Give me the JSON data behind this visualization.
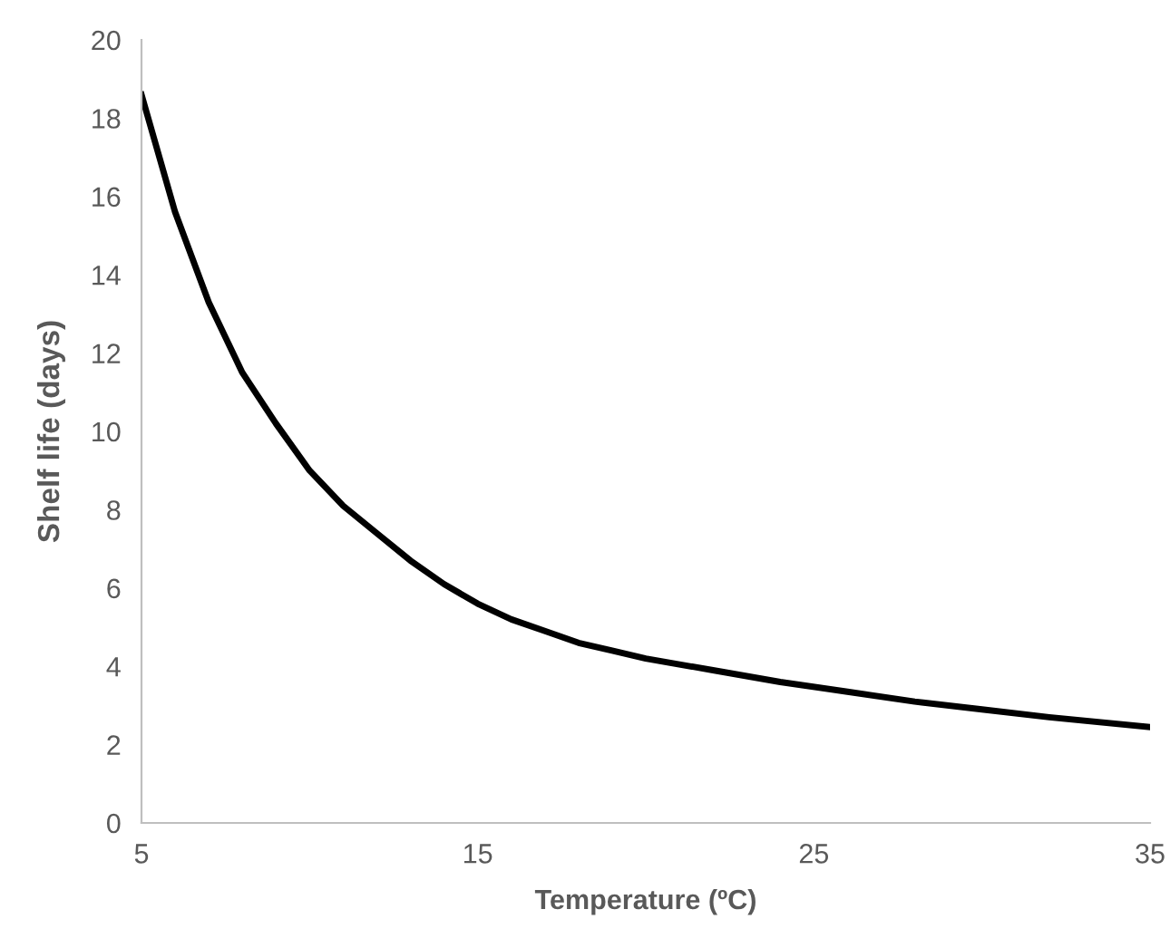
{
  "chart_data": {
    "type": "line",
    "xlabel": "Temperature (ºC)",
    "ylabel": "Shelf life (days)",
    "x": [
      5,
      6,
      7,
      8,
      9,
      10,
      11,
      12,
      13,
      14,
      15,
      16,
      17,
      18,
      19,
      20,
      22,
      24,
      26,
      28,
      30,
      32,
      35
    ],
    "series": [
      {
        "color": "#000000",
        "values": [
          18.6,
          15.6,
          13.3,
          11.5,
          10.2,
          9.0,
          8.1,
          7.4,
          6.7,
          6.1,
          5.6,
          5.2,
          4.9,
          4.6,
          4.4,
          4.2,
          3.9,
          3.6,
          3.35,
          3.1,
          2.9,
          2.7,
          2.45
        ]
      }
    ],
    "xlim": [
      5,
      35
    ],
    "xticks": [
      5,
      15,
      25,
      35
    ],
    "ylim": [
      0,
      20
    ],
    "yticks": [
      0,
      2,
      4,
      6,
      8,
      10,
      12,
      14,
      16,
      18,
      20
    ],
    "grid": false,
    "legend": false,
    "marker": "none",
    "line_style": "solid"
  }
}
